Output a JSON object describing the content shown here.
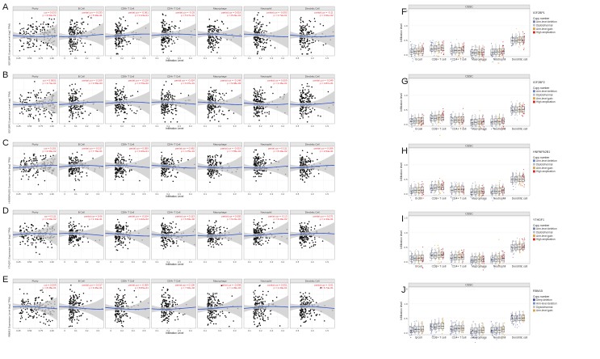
{
  "figure": {
    "scatter_rows": [
      {
        "letter": "A",
        "ylabel": "IGF2BP1 Expression Level (log2 TPM)",
        "panels": [
          {
            "title": "Purity",
            "cor": "cor = 0.033",
            "p": "p = 4.94e-01",
            "red": true
          },
          {
            "title": "B Cell",
            "cor": "partial.cor = -0.033",
            "p": "p = 5.39e-01",
            "red": true
          },
          {
            "title": "CD8+ T Cell",
            "cor": "partial.cor = -0.061",
            "p": "p = 3.13e-01",
            "red": true
          },
          {
            "title": "CD4+ T Cell",
            "cor": "partial.cor = -0.03",
            "p": "p = 5.17e-01",
            "red": true
          },
          {
            "title": "Macrophage",
            "cor": "partial.cor = 0.016",
            "p": "p = 8.22e-01",
            "red": true
          },
          {
            "title": "Neutrophil",
            "cor": "partial.cor = -0.093",
            "p": "p = 1.72e-01",
            "red": true
          },
          {
            "title": "Dendritic Cell",
            "cor": "partial.cor = -0.11",
            "p": "p = 4.91e-02",
            "red": true
          }
        ]
      },
      {
        "letter": "B",
        "ylabel": "IGF2BP2 Expression Level (log2 TPM)",
        "panels": [
          {
            "title": "Purity",
            "cor": "cor = 0.0001",
            "p": "p = 1.74e-01",
            "red": true
          },
          {
            "title": "B Cell",
            "cor": "partial.cor = -0.169",
            "p": "p = 1.59e-03",
            "red": true
          },
          {
            "title": "CD8+ T Cell",
            "cor": "partial.cor = -0.128",
            "p": "p = 3.76e-02",
            "red": true
          },
          {
            "title": "CD4+ T Cell",
            "cor": "partial.cor = -0.024",
            "p": "p = 6.07e-01",
            "red": true
          },
          {
            "title": "Macrophage",
            "cor": "partial.cor = -0.148",
            "p": "p = 9.68e-03",
            "red": true
          },
          {
            "title": "Neutrophil",
            "cor": "partial.cor = 0.009",
            "p": "p = 1.46e-01",
            "red": true
          },
          {
            "title": "Dendritic Cell",
            "cor": "partial.cor = -0.049",
            "p": "p = 4.87e-01",
            "red": true
          }
        ]
      },
      {
        "letter": "C",
        "ylabel": "HNRNPA2B1 Expression Level (log2 TPM)",
        "panels": [
          {
            "title": "Purity",
            "cor": "cor = 0.101",
            "p": "p = 2.39e-02",
            "red": true
          },
          {
            "title": "B Cell",
            "cor": "partial.cor = -0.017",
            "p": "p = 7.79e-01",
            "red": true
          },
          {
            "title": "CD8+ T Cell",
            "cor": "partial.cor = 0.059",
            "p": "p = 3.40e-01",
            "red": true
          },
          {
            "title": "CD4+ T Cell",
            "cor": "partial.cor = 0.062",
            "p": "p = 1.75e-01",
            "red": true
          },
          {
            "title": "Macrophage",
            "cor": "partial.cor = -0.019",
            "p": "p = 7.55e-01",
            "red": true
          },
          {
            "title": "Neutrophil",
            "cor": "partial.cor = 0.111",
            "p": "p = 6.40e-02",
            "red": true
          },
          {
            "title": "Dendritic Cell",
            "cor": "partial.cor = 0.066",
            "p": "p = 2.64e-01",
            "red": true
          }
        ]
      },
      {
        "letter": "D",
        "ylabel": "YTHDF1 Expression Level (log2 TPM)",
        "panels": [
          {
            "title": "Purity",
            "cor": "cor = 0.111",
            "p": "p = 1.60e-02",
            "red": true
          },
          {
            "title": "B Cell",
            "cor": "partial.cor = 0.06",
            "p": "p = 1.34e-01",
            "red": true
          },
          {
            "title": "CD8+ T Cell",
            "cor": "partial.cor = -0.104",
            "p": "p = 4.42e-02",
            "red": true
          },
          {
            "title": "CD4+ T Cell",
            "cor": "partial.cor = 0.113",
            "p": "p = 6.63e-02",
            "red": true
          },
          {
            "title": "Macrophage",
            "cor": "partial.cor = 0.005",
            "p": "p = 9.21e-01",
            "red": true
          },
          {
            "title": "Neutrophil",
            "cor": "partial.cor = -0.13",
            "p": "p = 3.40e-02",
            "red": true
          },
          {
            "title": "Dendritic Cell",
            "cor": "partial.cor = -0.071",
            "p": "p = 2.43e-01",
            "red": true
          }
        ]
      },
      {
        "letter": "E",
        "ylabel": "RBM15 Expression Level (log2 TPM)",
        "panels": [
          {
            "title": "Purity",
            "cor": "cor = 0.009",
            "p": "p = 8.38e-01",
            "red": true
          },
          {
            "title": "B Cell",
            "cor": "partial.cor = -0.017",
            "p": "p = 6.36e-01",
            "red": true
          },
          {
            "title": "CD8+ T Cell",
            "cor": "partial.cor = -0.009",
            "p": "p = 8.69e-01",
            "red": true
          },
          {
            "title": "CD4+ T Cell",
            "cor": "partial.cor = 0.106",
            "p": "p = 7.94e-02",
            "red": true
          },
          {
            "title": "Macrophage",
            "cor": "partial.cor = -0.008",
            "p": "p = 1.09e-01",
            "red": true
          },
          {
            "title": "Neutrophil",
            "cor": "partial.cor = 0.051",
            "p": "p = 1.30e-01",
            "red": true
          },
          {
            "title": "Dendritic Cell",
            "cor": "partial.cor = -0.01",
            "p": "p = 6.74e-01",
            "red": true
          }
        ]
      }
    ],
    "scatter_xlabel": "Infiltration Level",
    "box_panels": [
      {
        "letter": "F",
        "title": "CESC",
        "gene": "IGF2BP1",
        "legend_title": "Copy number",
        "legend": [
          "Arm-level deletion",
          "Diploid/normal",
          "Arm-level gain",
          "High amplication"
        ]
      },
      {
        "letter": "G",
        "title": "CESC",
        "gene": "IGF2BP2",
        "legend_title": "Copy number",
        "legend": [
          "Arm-level deletion",
          "Diploid/normal",
          "Arm-level gain",
          "High amplication"
        ]
      },
      {
        "letter": "H",
        "title": "CESC",
        "gene": "HNRNPA2B1",
        "legend_title": "Copy number",
        "legend": [
          "Arm-level deletion",
          "Diploid/normal",
          "Arm-level gain",
          "High amplication"
        ]
      },
      {
        "letter": "I",
        "title": "CESC",
        "gene": "YTHDF1",
        "legend_title": "Copy number",
        "legend": [
          "Arm-level deletion",
          "Diploid/normal",
          "Arm-level gain",
          "High amplication"
        ]
      },
      {
        "letter": "J",
        "title": "CESC",
        "gene": "RBM15",
        "legend_title": "Copy number",
        "legend": [
          "Deep deletion",
          "Arm-level deletion",
          "Diploid/normal",
          "Arm-level gain"
        ]
      }
    ],
    "box_categories": [
      "B cell",
      "CD8+ T cell",
      "CD4+ T cell",
      "Macrophage",
      "Neutrophil",
      "Dendritic cell"
    ],
    "box_ylabel": "Infiltration level",
    "box_yticks": [
      "0.0",
      "0.5",
      "1.0",
      "1.5"
    ],
    "colors": {
      "red": "#e8202a",
      "blue": "#3355cc",
      "band": "#c8c8c8",
      "legend4": [
        "#6c7fb5",
        "#b6bcc8",
        "#e0a03a",
        "#d02828"
      ],
      "legend4J": [
        "#3d4a8f",
        "#7b8cc0",
        "#bfc4cc",
        "#e0a03a"
      ]
    }
  }
}
